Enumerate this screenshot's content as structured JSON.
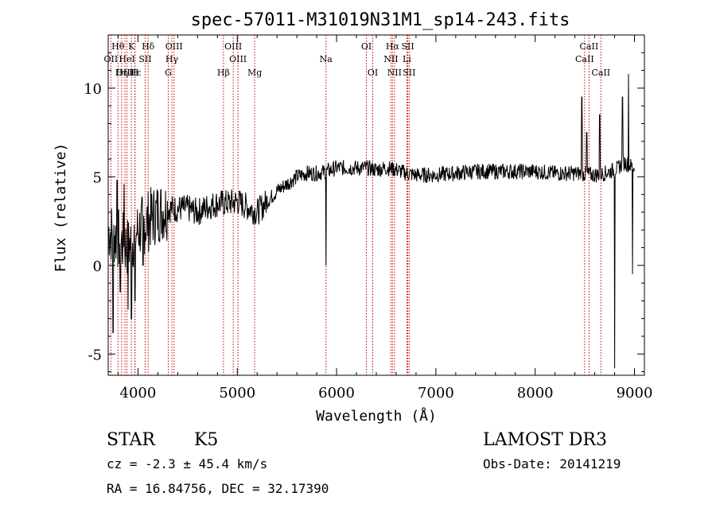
{
  "chart_data": {
    "type": "line",
    "title": "spec-57011-M31019N31M1_sp14-243.fits",
    "xlabel": "Wavelength (Å)",
    "ylabel": "Flux (relative)",
    "xlim": [
      3700,
      9100
    ],
    "ylim": [
      -6.2,
      13.0
    ],
    "x_ticks": [
      4000,
      5000,
      6000,
      7000,
      8000,
      9000
    ],
    "x_tick_labels": [
      "4000",
      "5000",
      "6000",
      "7000",
      "8000",
      "9000"
    ],
    "y_ticks": [
      -5,
      0,
      5,
      10
    ],
    "y_tick_labels": [
      "-5",
      "0",
      "5",
      "10"
    ],
    "series": [
      {
        "name": "flux",
        "color": "#000000",
        "anchors": [
          [
            3700,
            2.0
          ],
          [
            3800,
            1.5
          ],
          [
            3900,
            1.0
          ],
          [
            4000,
            2.0
          ],
          [
            4100,
            2.5
          ],
          [
            4200,
            3.0
          ],
          [
            4300,
            3.2
          ],
          [
            4400,
            3.2
          ],
          [
            4500,
            3.2
          ],
          [
            4600,
            3.0
          ],
          [
            4700,
            3.3
          ],
          [
            4800,
            3.5
          ],
          [
            4900,
            3.5
          ],
          [
            5000,
            3.6
          ],
          [
            5100,
            3.3
          ],
          [
            5200,
            3.0
          ],
          [
            5300,
            3.6
          ],
          [
            5400,
            4.2
          ],
          [
            5500,
            4.6
          ],
          [
            5600,
            5.0
          ],
          [
            5700,
            5.2
          ],
          [
            5800,
            5.2
          ],
          [
            5900,
            5.3
          ],
          [
            6000,
            5.5
          ],
          [
            6100,
            5.5
          ],
          [
            6200,
            5.5
          ],
          [
            6300,
            5.5
          ],
          [
            6400,
            5.4
          ],
          [
            6500,
            5.5
          ],
          [
            6600,
            5.4
          ],
          [
            6700,
            5.2
          ],
          [
            6800,
            5.1
          ],
          [
            6900,
            5.1
          ],
          [
            7000,
            5.1
          ],
          [
            7200,
            5.2
          ],
          [
            7400,
            5.3
          ],
          [
            7600,
            5.3
          ],
          [
            7800,
            5.3
          ],
          [
            8000,
            5.3
          ],
          [
            8200,
            5.2
          ],
          [
            8400,
            5.2
          ],
          [
            8600,
            5.1
          ],
          [
            8700,
            5.2
          ],
          [
            8800,
            5.4
          ],
          [
            8900,
            5.8
          ],
          [
            9000,
            5.5
          ]
        ],
        "features": [
          [
            3750,
            -3.8
          ],
          [
            3790,
            4.8
          ],
          [
            3820,
            -1.5
          ],
          [
            3860,
            4.6
          ],
          [
            3900,
            -2.5
          ],
          [
            3935,
            -3.0
          ],
          [
            3970,
            -2.0
          ],
          [
            4050,
            0.0
          ],
          [
            5893,
            0.0
          ],
          [
            6563,
            5.8
          ],
          [
            8470,
            9.5
          ],
          [
            8520,
            7.5
          ],
          [
            8650,
            8.5
          ],
          [
            8800,
            -5.8
          ],
          [
            8830,
            5.8
          ],
          [
            8880,
            9.5
          ],
          [
            8940,
            10.8
          ],
          [
            8980,
            -0.5
          ]
        ],
        "noise": 0.45
      }
    ],
    "line_markers": [
      {
        "label": "Hθ",
        "x": 3798,
        "row": 1
      },
      {
        "label": "OII",
        "x": 3727,
        "row": 2
      },
      {
        "label": "OIII",
        "x": 3869,
        "row": 3
      },
      {
        "label": "K",
        "x": 3934,
        "row": 1
      },
      {
        "label": "HeI",
        "x": 3889,
        "row": 2
      },
      {
        "label": "Hε",
        "x": 3970,
        "row": 3
      },
      {
        "label": "Hδ",
        "x": 4102,
        "row": 1
      },
      {
        "label": "SII",
        "x": 4072,
        "row": 2
      },
      {
        "label": "Hη",
        "x": 3835,
        "row": 3
      },
      {
        "label": "H",
        "x": 3969,
        "row": 3
      },
      {
        "label": "OIII",
        "x": 4363,
        "row": 1
      },
      {
        "label": "Hγ",
        "x": 4341,
        "row": 2
      },
      {
        "label": "G",
        "x": 4305,
        "row": 3
      },
      {
        "label": "OIII",
        "x": 4959,
        "row": 1
      },
      {
        "label": "OIII",
        "x": 5007,
        "row": 2
      },
      {
        "label": "Hβ",
        "x": 4861,
        "row": 3
      },
      {
        "label": "Mg",
        "x": 5175,
        "row": 3
      },
      {
        "label": "Na",
        "x": 5893,
        "row": 2
      },
      {
        "label": "OI",
        "x": 6300,
        "row": 1
      },
      {
        "label": "OI",
        "x": 6364,
        "row": 3
      },
      {
        "label": "Hα",
        "x": 6563,
        "row": 1
      },
      {
        "label": "SII",
        "x": 6717,
        "row": 1
      },
      {
        "label": "NII",
        "x": 6548,
        "row": 2
      },
      {
        "label": "Li",
        "x": 6708,
        "row": 2
      },
      {
        "label": "NII",
        "x": 6583,
        "row": 3
      },
      {
        "label": "SII",
        "x": 6731,
        "row": 3
      },
      {
        "label": "CaII",
        "x": 8542,
        "row": 1
      },
      {
        "label": "CaII",
        "x": 8498,
        "row": 2
      },
      {
        "label": "CaII",
        "x": 8662,
        "row": 3
      }
    ],
    "marker_color": "#cc0000",
    "grid": false
  },
  "footer": {
    "class": "STAR",
    "subclass": "K5",
    "survey": "LAMOST DR3",
    "redshift": "cz = -2.3 ± 45.4 km/s",
    "obs_date": "Obs-Date: 20141219",
    "coords": "RA =  16.84756, DEC =  32.17390"
  }
}
